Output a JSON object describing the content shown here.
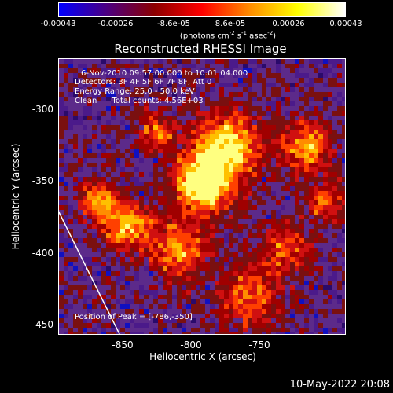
{
  "colorbar": {
    "ticks": [
      "-0.00043",
      "-0.00026",
      "-8.6e-05",
      "8.6e-05",
      "0.00026",
      "0.00043"
    ],
    "units_prefix": "(photons cm",
    "units_exp1": "-2",
    "units_mid": " s",
    "units_exp2": "-1",
    "units_mid2": " asec",
    "units_exp3": "-2",
    "units_suffix": ")",
    "stops": [
      "#0000ff",
      "#4b0082",
      "#8b0000",
      "#ff0000",
      "#ff8c00",
      "#ffff00",
      "#ffffff"
    ]
  },
  "title": "Reconstructed RHESSI Image",
  "info": {
    "time_range": "6-Nov-2010 09:57:00.000 to 10:01:04.000",
    "detectors": "Detectors: 3F 4F 5F 6F 7F 8F, Att 0",
    "energy": "Energy Range: 25.0 - 50.0 keV",
    "clean": "Clean      Total counts: 4.56E+03"
  },
  "peak": "Position of Peak = [-786,-350]",
  "axes": {
    "xlabel": "Heliocentric X (arcsec)",
    "ylabel": "Heliocentric Y (arcsec)",
    "xticks": [
      "-850",
      "-800",
      "-750"
    ],
    "yticks": [
      "-300",
      "-350",
      "-400",
      "-450"
    ]
  },
  "datestamp": "10-May-2022 20:08"
}
